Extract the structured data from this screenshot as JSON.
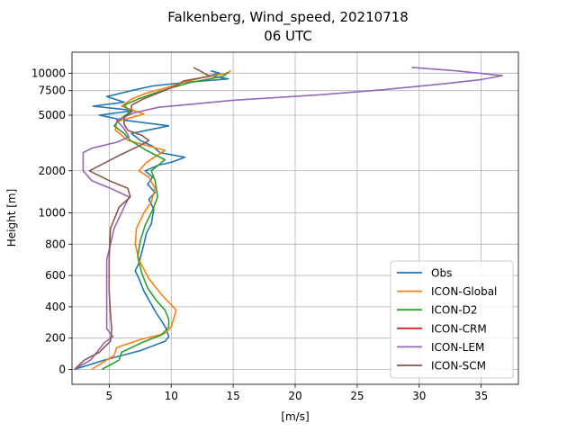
{
  "chart_data": {
    "type": "line",
    "title_line1": "Falkenberg, Wind_speed, 20210718",
    "title_line2": "06 UTC",
    "xlabel": "[m/s]",
    "ylabel": "Height [m]",
    "xlim": [
      2,
      38
    ],
    "x_ticks": [
      5,
      10,
      15,
      20,
      25,
      30,
      35
    ],
    "y_ticks": [
      "0",
      "200",
      "400",
      "600",
      "800",
      "1000",
      "2000",
      "5000",
      "7500",
      "10000"
    ],
    "y_axis_note": "piecewise scale: linear 0-1000 m, logarithmic above",
    "grid": true,
    "legend_position": "lower-right",
    "series": [
      {
        "name": "Obs",
        "color": "#1f77b4",
        "points": [
          [
            2.2,
            0
          ],
          [
            4.6,
            60
          ],
          [
            7.5,
            120
          ],
          [
            9.5,
            180
          ],
          [
            9.8,
            210
          ],
          [
            9.6,
            260
          ],
          [
            9.3,
            300
          ],
          [
            8.8,
            360
          ],
          [
            8.3,
            430
          ],
          [
            7.8,
            500
          ],
          [
            7.4,
            580
          ],
          [
            7.1,
            630
          ],
          [
            7.4,
            680
          ],
          [
            7.6,
            740
          ],
          [
            7.8,
            800
          ],
          [
            8.0,
            870
          ],
          [
            8.4,
            930
          ],
          [
            8.5,
            980
          ],
          [
            8.6,
            1050
          ],
          [
            8.4,
            1150
          ],
          [
            8.2,
            1250
          ],
          [
            8.7,
            1400
          ],
          [
            8.1,
            1600
          ],
          [
            8.5,
            1800
          ],
          [
            7.9,
            2000
          ],
          [
            9.0,
            2200
          ],
          [
            10.0,
            2300
          ],
          [
            11.1,
            2500
          ],
          [
            9.1,
            2700
          ],
          [
            8.5,
            3000
          ],
          [
            7.5,
            3300
          ],
          [
            6.8,
            3700
          ],
          [
            9.8,
            4200
          ],
          [
            6.2,
            4600
          ],
          [
            4.2,
            5000
          ],
          [
            7.0,
            5400
          ],
          [
            3.7,
            5800
          ],
          [
            6.2,
            6200
          ],
          [
            4.8,
            6800
          ],
          [
            6.8,
            7500
          ],
          [
            8.5,
            8100
          ],
          [
            11.2,
            8600
          ],
          [
            14.6,
            9100
          ],
          [
            13.1,
            9600
          ],
          [
            13.9,
            10000
          ],
          [
            13.2,
            10400
          ]
        ]
      },
      {
        "name": "ICON-Global",
        "color": "#ff7f0e",
        "points": [
          [
            3.6,
            0
          ],
          [
            5.4,
            90
          ],
          [
            5.6,
            140
          ],
          [
            7.5,
            190
          ],
          [
            9.5,
            230
          ],
          [
            10.0,
            270
          ],
          [
            10.4,
            380
          ],
          [
            9.2,
            480
          ],
          [
            8.2,
            580
          ],
          [
            7.4,
            700
          ],
          [
            7.1,
            800
          ],
          [
            7.2,
            900
          ],
          [
            7.8,
            1000
          ],
          [
            8.4,
            1200
          ],
          [
            8.7,
            1500
          ],
          [
            8.2,
            1800
          ],
          [
            7.4,
            2000
          ],
          [
            8.0,
            2300
          ],
          [
            9.5,
            2800
          ],
          [
            6.5,
            3300
          ],
          [
            5.5,
            3900
          ],
          [
            5.6,
            4500
          ],
          [
            7.8,
            5100
          ],
          [
            6.0,
            5800
          ],
          [
            6.8,
            6500
          ],
          [
            8.0,
            7200
          ],
          [
            9.5,
            7800
          ],
          [
            10.8,
            8500
          ],
          [
            12.5,
            9300
          ],
          [
            14.6,
            10000
          ],
          [
            14.8,
            10500
          ]
        ]
      },
      {
        "name": "ICON-D2",
        "color": "#2ca02c",
        "points": [
          [
            4.4,
            0
          ],
          [
            5.8,
            60
          ],
          [
            6.0,
            110
          ],
          [
            7.6,
            170
          ],
          [
            9.2,
            220
          ],
          [
            9.8,
            270
          ],
          [
            9.8,
            320
          ],
          [
            9.5,
            380
          ],
          [
            8.8,
            440
          ],
          [
            8.1,
            520
          ],
          [
            7.6,
            620
          ],
          [
            7.3,
            720
          ],
          [
            7.5,
            820
          ],
          [
            7.9,
            920
          ],
          [
            8.5,
            1050
          ],
          [
            8.9,
            1300
          ],
          [
            8.7,
            1700
          ],
          [
            8.4,
            2000
          ],
          [
            9.5,
            2400
          ],
          [
            8.0,
            2800
          ],
          [
            6.7,
            3300
          ],
          [
            6.2,
            3700
          ],
          [
            5.4,
            4200
          ],
          [
            5.9,
            4700
          ],
          [
            6.7,
            5300
          ],
          [
            6.2,
            5900
          ],
          [
            7.3,
            6500
          ],
          [
            8.7,
            7200
          ],
          [
            10.1,
            7900
          ],
          [
            11.6,
            8600
          ],
          [
            14.2,
            9500
          ],
          [
            14.6,
            10200
          ]
        ]
      },
      {
        "name": "ICON-CRM",
        "color": "#d62728",
        "points": []
      },
      {
        "name": "ICON-LEM",
        "color": "#9467bd",
        "points": [
          [
            2.2,
            0
          ],
          [
            3.5,
            60
          ],
          [
            4.0,
            110
          ],
          [
            4.6,
            170
          ],
          [
            5.3,
            210
          ],
          [
            4.8,
            260
          ],
          [
            4.8,
            350
          ],
          [
            4.8,
            500
          ],
          [
            4.8,
            700
          ],
          [
            5.1,
            800
          ],
          [
            5.4,
            900
          ],
          [
            6.2,
            1100
          ],
          [
            6.6,
            1300
          ],
          [
            5.1,
            1500
          ],
          [
            3.6,
            1700
          ],
          [
            2.9,
            2000
          ],
          [
            2.9,
            2300
          ],
          [
            2.9,
            2700
          ],
          [
            3.6,
            2900
          ],
          [
            5.6,
            3200
          ],
          [
            6.6,
            3500
          ],
          [
            6.2,
            4000
          ],
          [
            5.6,
            4600
          ],
          [
            7.0,
            5200
          ],
          [
            9.0,
            5700
          ],
          [
            15.0,
            6400
          ],
          [
            22.0,
            7000
          ],
          [
            27.0,
            7600
          ],
          [
            32.0,
            8400
          ],
          [
            35.0,
            9000
          ],
          [
            36.7,
            9600
          ],
          [
            33.0,
            10400
          ],
          [
            29.4,
            11000
          ]
        ]
      },
      {
        "name": "ICON-SCM",
        "color": "#8c564b",
        "points": [
          [
            2.2,
            0
          ],
          [
            3.0,
            60
          ],
          [
            4.2,
            110
          ],
          [
            5.1,
            180
          ],
          [
            5.2,
            260
          ],
          [
            5.1,
            360
          ],
          [
            5.0,
            500
          ],
          [
            5.0,
            700
          ],
          [
            5.1,
            900
          ],
          [
            5.8,
            1100
          ],
          [
            6.7,
            1300
          ],
          [
            6.5,
            1500
          ],
          [
            5.0,
            1700
          ],
          [
            3.4,
            2000
          ],
          [
            5.9,
            2600
          ],
          [
            7.7,
            3100
          ],
          [
            8.2,
            3300
          ],
          [
            7.6,
            3600
          ],
          [
            6.5,
            3900
          ],
          [
            6.2,
            4300
          ],
          [
            6.2,
            4800
          ],
          [
            6.8,
            5300
          ],
          [
            6.8,
            5900
          ],
          [
            7.7,
            6500
          ],
          [
            9.1,
            7300
          ],
          [
            10.5,
            8200
          ],
          [
            11.0,
            8800
          ],
          [
            13.1,
            9500
          ],
          [
            12.4,
            10300
          ],
          [
            11.8,
            11000
          ]
        ]
      }
    ]
  }
}
